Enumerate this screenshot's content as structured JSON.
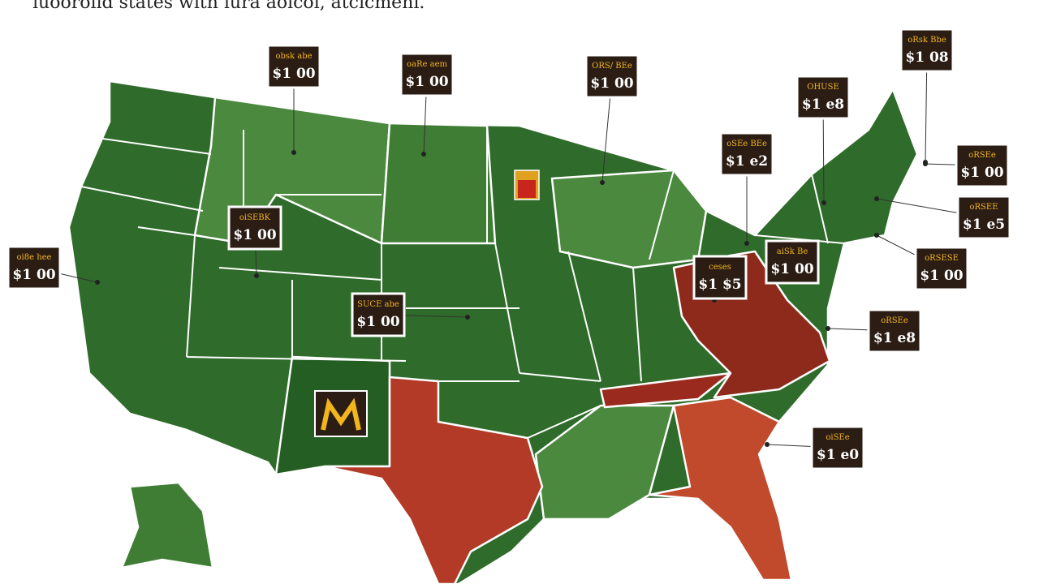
{
  "header": {
    "title": "iuooroiid states with iura aoicoi, atcicmeni."
  },
  "callouts": [
    {
      "heading": "obsk abe",
      "price": "$1 00"
    },
    {
      "heading": "oaRe aem",
      "price": "$1 00"
    },
    {
      "heading": "ORS/ BEe",
      "price": "$1 00"
    },
    {
      "heading": "oRsk Bbe",
      "price": "$1 08"
    },
    {
      "heading": "OHUSE",
      "price": "$1 e8"
    },
    {
      "heading": "oSEe BEe",
      "price": "$1 e2"
    },
    {
      "heading": "oRSEe",
      "price": "$1 00"
    },
    {
      "heading": "oRSEE",
      "price": "$1 e5"
    },
    {
      "heading": "oiSEBK",
      "price": "$1 00"
    },
    {
      "heading": "oi8e hee",
      "price": "$1 00"
    },
    {
      "heading": "ceses",
      "price": "$1 $5"
    },
    {
      "heading": "aiSk Be",
      "price": "$1 00"
    },
    {
      "heading": "oRSESE",
      "price": "$1 00"
    },
    {
      "heading": "SUCE abe",
      "price": "$1 00"
    },
    {
      "heading": "oRSEe",
      "price": "$1 e8"
    },
    {
      "heading": "oiSEe",
      "price": "$1 e0"
    }
  ]
}
